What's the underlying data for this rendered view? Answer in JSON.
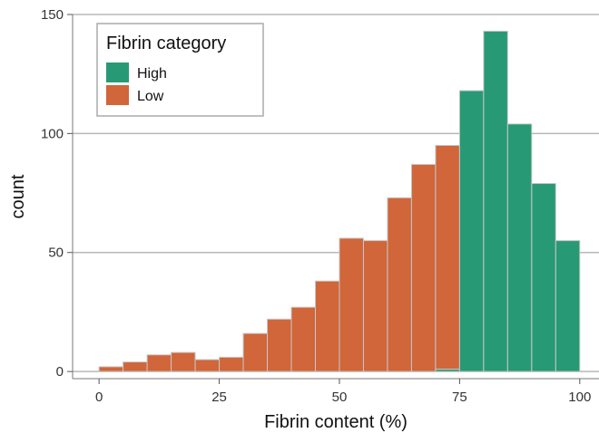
{
  "chart_data": {
    "type": "bar",
    "subtype": "stacked-histogram",
    "title": "",
    "xlabel": "Fibrin content (%)",
    "ylabel": "count",
    "xlim": [
      -5.5,
      104
    ],
    "ylim": [
      -3,
      150
    ],
    "xticks": [
      0,
      25,
      50,
      75,
      100
    ],
    "yticks": [
      0,
      50,
      100,
      150
    ],
    "bin_width": 5,
    "bin_centers": [
      2.5,
      7.5,
      12.5,
      17.5,
      22.5,
      27.5,
      32.5,
      37.5,
      42.5,
      47.5,
      52.5,
      57.5,
      62.5,
      67.5,
      72.5,
      77.5,
      82.5,
      87.5,
      92.5,
      97.5
    ],
    "series": [
      {
        "name": "High",
        "color": "#279a75",
        "values": [
          0,
          0,
          0,
          0,
          0,
          0,
          0,
          0,
          0,
          0,
          0,
          0,
          0,
          0,
          1,
          118,
          143,
          104,
          79,
          55
        ]
      },
      {
        "name": "Low",
        "color": "#d0663a",
        "values": [
          2,
          4,
          7,
          8,
          5,
          6,
          16,
          22,
          27,
          38,
          56,
          55,
          73,
          87,
          94,
          0,
          0,
          0,
          0,
          0
        ]
      }
    ],
    "legend": {
      "title": "Fibrin category",
      "placement": "top-left"
    },
    "grid": "horizontal"
  }
}
